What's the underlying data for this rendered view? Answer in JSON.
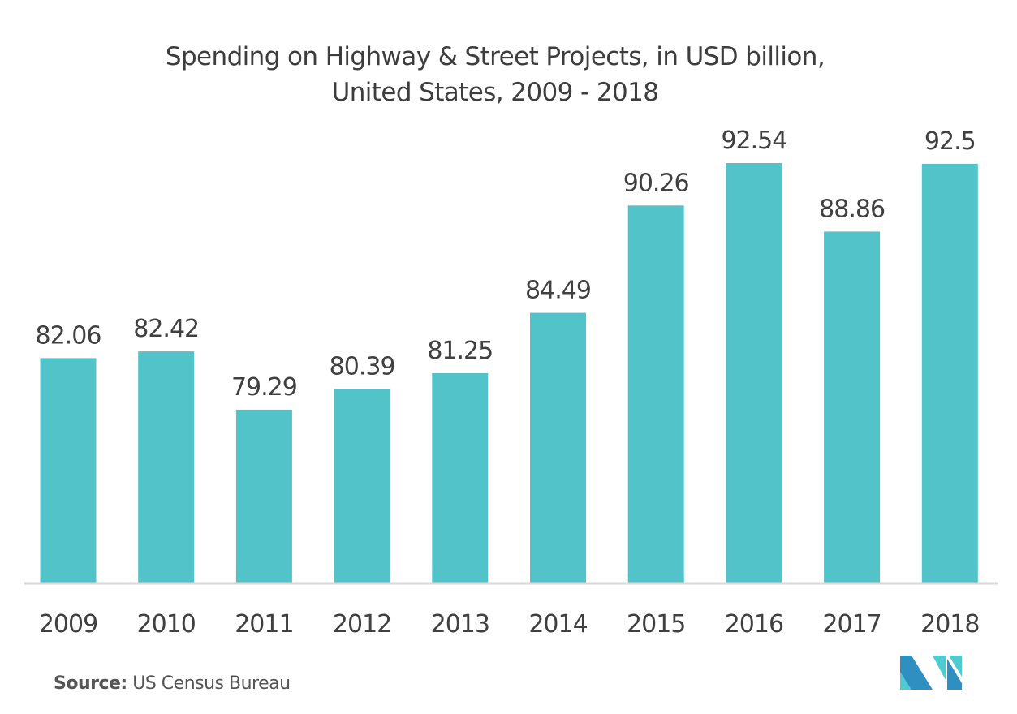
{
  "title_line1": "Spending on Highway & Street Projects, in USD billion,",
  "title_line2": "United States, 2009 - 2018",
  "source_label": "Source:",
  "source_text": "US Census Bureau",
  "logo": "mordor-intelligence-logo-icon",
  "colors": {
    "bar": "#52c3c8",
    "axis": "#d9d9d9",
    "text": "#404040",
    "logo_dark": "#2e8fc0",
    "logo_light": "#4ecbd0"
  },
  "chart_data": {
    "type": "bar",
    "title": "Spending on Highway & Street Projects, in USD billion, United States, 2009 - 2018",
    "xlabel": "",
    "ylabel": "",
    "categories": [
      "2009",
      "2010",
      "2011",
      "2012",
      "2013",
      "2014",
      "2015",
      "2016",
      "2017",
      "2018"
    ],
    "values": [
      82.06,
      82.42,
      79.29,
      80.39,
      81.25,
      84.49,
      90.26,
      92.54,
      88.86,
      92.5
    ],
    "data_labels": [
      "82.06",
      "82.42",
      "79.29",
      "80.39",
      "81.25",
      "84.49",
      "90.26",
      "92.54",
      "88.86",
      "92.5"
    ],
    "ylim": [
      70,
      93
    ],
    "grid": false,
    "legend": "none",
    "y_axis_visible": false
  }
}
